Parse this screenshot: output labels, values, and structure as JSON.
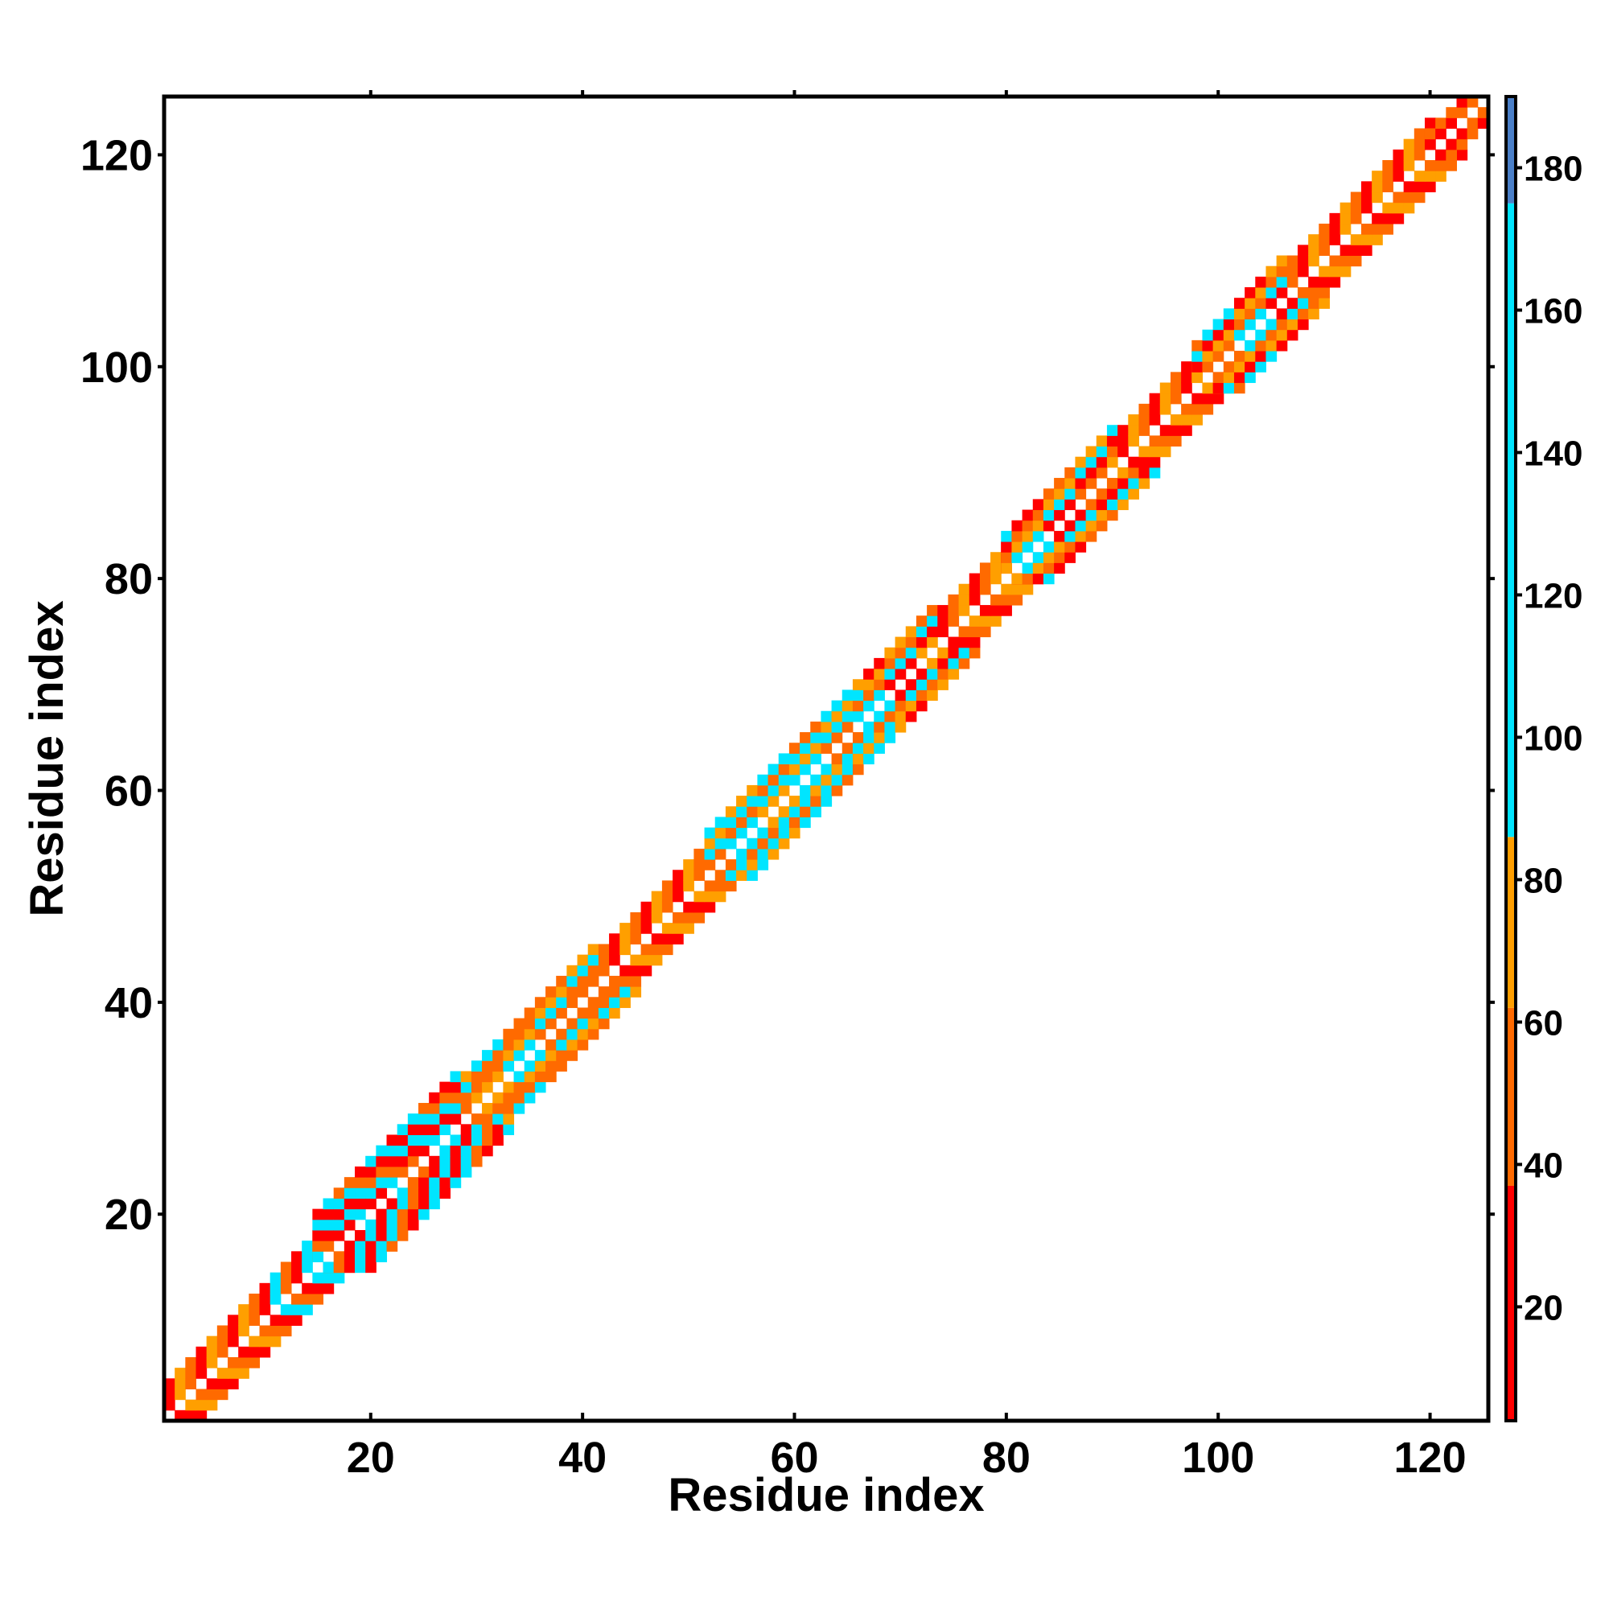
{
  "chart_data": {
    "type": "heatmap",
    "title": "",
    "xlabel": "Residue index",
    "ylabel": "Residue index",
    "xlim": [
      1,
      125
    ],
    "ylim": [
      1,
      125
    ],
    "x_ticks": [
      20,
      40,
      60,
      80,
      100,
      120
    ],
    "y_ticks": [
      20,
      40,
      60,
      80,
      100,
      120
    ],
    "grid": false,
    "colorbar": {
      "range": [
        4,
        190
      ],
      "ticks": [
        20,
        40,
        60,
        80,
        100,
        120,
        140,
        160,
        180
      ],
      "colors": [
        {
          "from": 4,
          "to": 37,
          "color": "#ff0000"
        },
        {
          "from": 37,
          "to": 62,
          "color": "#ff6a00"
        },
        {
          "from": 62,
          "to": 86,
          "color": "#ff9f00"
        },
        {
          "from": 86,
          "to": 175,
          "color": "#00e5ff"
        },
        {
          "from": 175,
          "to": 190,
          "color": "#4a7fc8"
        }
      ]
    },
    "band": {
      "description": "values present only for |i-j| between 1 and band_halfwidth; diagonal and far-off-diagonal cells are empty",
      "color_classes": [
        "red",
        "orange",
        "amber",
        "cyan",
        "blue"
      ],
      "segments": [
        {
          "start": 1,
          "end": 9,
          "halfwidth": 3,
          "palette": [
            "orange",
            "amber",
            "red"
          ]
        },
        {
          "start": 10,
          "end": 15,
          "halfwidth": 3,
          "palette": [
            "orange",
            "cyan",
            "red"
          ]
        },
        {
          "start": 15,
          "end": 28,
          "halfwidth": 5,
          "palette": [
            "red",
            "orange",
            "cyan",
            "cyan",
            "red"
          ]
        },
        {
          "start": 29,
          "end": 41,
          "halfwidth": 4,
          "palette": [
            "orange",
            "amber",
            "cyan",
            "orange"
          ]
        },
        {
          "start": 42,
          "end": 51,
          "halfwidth": 3,
          "palette": [
            "orange",
            "amber",
            "red"
          ]
        },
        {
          "start": 52,
          "end": 66,
          "halfwidth": 4,
          "palette": [
            "orange",
            "cyan",
            "amber",
            "cyan"
          ]
        },
        {
          "start": 67,
          "end": 73,
          "halfwidth": 4,
          "palette": [
            "orange",
            "cyan",
            "red",
            "amber"
          ]
        },
        {
          "start": 74,
          "end": 80,
          "halfwidth": 3,
          "palette": [
            "orange",
            "red",
            "amber"
          ]
        },
        {
          "start": 80,
          "end": 90,
          "halfwidth": 4,
          "palette": [
            "orange",
            "amber",
            "cyan",
            "red"
          ]
        },
        {
          "start": 91,
          "end": 98,
          "halfwidth": 3,
          "palette": [
            "orange",
            "amber",
            "red"
          ]
        },
        {
          "start": 98,
          "end": 106,
          "halfwidth": 4,
          "palette": [
            "orange",
            "cyan",
            "red",
            "amber"
          ]
        },
        {
          "start": 107,
          "end": 120,
          "halfwidth": 3,
          "palette": [
            "red",
            "orange",
            "amber"
          ]
        },
        {
          "start": 120,
          "end": 124,
          "halfwidth": 2,
          "palette": [
            "orange",
            "red"
          ]
        }
      ]
    }
  }
}
